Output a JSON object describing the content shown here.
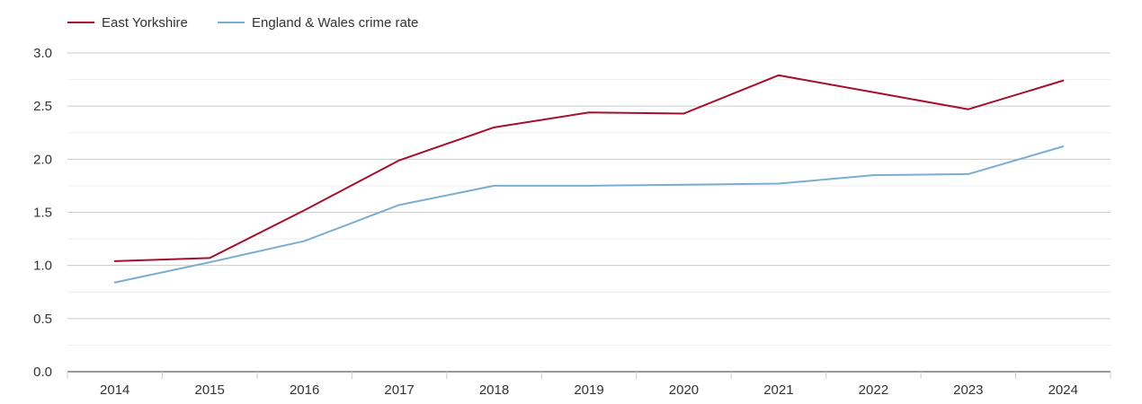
{
  "chart_data": {
    "type": "line",
    "title": "",
    "xlabel": "",
    "ylabel": "",
    "x": [
      "2014",
      "2015",
      "2016",
      "2017",
      "2018",
      "2019",
      "2020",
      "2021",
      "2022",
      "2023",
      "2024"
    ],
    "ylim": [
      0,
      3
    ],
    "yticks": [
      "0.0",
      "0.5",
      "1.0",
      "1.5",
      "2.0",
      "2.5",
      "3.0"
    ],
    "ytick_values": [
      0,
      0.5,
      1,
      1.5,
      2,
      2.5,
      3
    ],
    "grid": true,
    "legend_position": "top-left",
    "series": [
      {
        "name": "East Yorkshire",
        "color": "#a50f2d",
        "values": [
          1.04,
          1.07,
          1.52,
          1.99,
          2.3,
          2.44,
          2.43,
          2.79,
          2.63,
          2.47,
          2.74
        ]
      },
      {
        "name": "England & Wales crime rate",
        "color": "#79aed2",
        "values": [
          0.84,
          1.03,
          1.23,
          1.57,
          1.75,
          1.75,
          1.76,
          1.77,
          1.85,
          1.86,
          2.12
        ]
      }
    ]
  }
}
